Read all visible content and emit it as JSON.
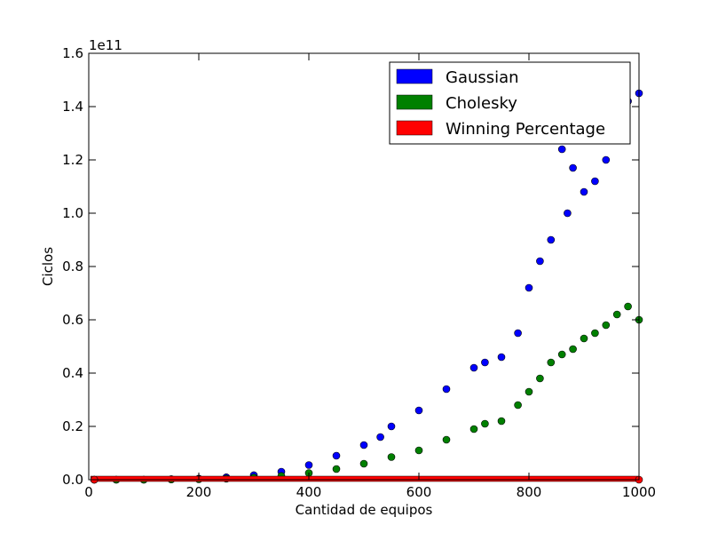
{
  "chart_data": {
    "type": "scatter",
    "xlabel": "Cantidad de equipos",
    "ylabel": "Ciclos",
    "y_multiplier_label": "1e11",
    "xlim": [
      0,
      1000
    ],
    "ylim": [
      0,
      1.6
    ],
    "x_ticks": [
      "0",
      "200",
      "400",
      "600",
      "800",
      "1000"
    ],
    "y_ticks": [
      "0.0",
      "0.2",
      "0.4",
      "0.6",
      "0.8",
      "1.0",
      "1.2",
      "1.4",
      "1.6"
    ],
    "legend_position": "upper right",
    "grid": false,
    "series": [
      {
        "name": "Gaussian",
        "color": "#0000ff",
        "x": [
          10,
          50,
          100,
          150,
          200,
          250,
          300,
          350,
          400,
          450,
          500,
          530,
          550,
          600,
          650,
          700,
          720,
          750,
          780,
          800,
          820,
          840,
          860,
          870,
          880,
          900,
          920,
          940,
          960,
          980,
          1000
        ],
        "y": [
          0.0,
          0.0,
          0.0,
          0.002,
          0.004,
          0.009,
          0.017,
          0.03,
          0.055,
          0.09,
          0.13,
          0.16,
          0.2,
          0.26,
          0.34,
          0.42,
          0.44,
          0.46,
          0.55,
          0.72,
          0.82,
          0.9,
          1.24,
          1.0,
          1.17,
          1.08,
          1.12,
          1.2,
          1.3,
          1.42,
          1.45
        ]
      },
      {
        "name": "Cholesky",
        "color": "#008000",
        "x": [
          10,
          50,
          100,
          150,
          200,
          250,
          300,
          350,
          400,
          450,
          500,
          550,
          600,
          650,
          700,
          720,
          750,
          780,
          800,
          820,
          840,
          860,
          880,
          900,
          920,
          940,
          960,
          980,
          1000
        ],
        "y": [
          0.0,
          0.0,
          0.0,
          0.001,
          0.002,
          0.004,
          0.008,
          0.014,
          0.025,
          0.04,
          0.06,
          0.085,
          0.11,
          0.15,
          0.19,
          0.21,
          0.22,
          0.28,
          0.33,
          0.38,
          0.44,
          0.47,
          0.49,
          0.53,
          0.55,
          0.58,
          0.62,
          0.65,
          0.6
        ]
      },
      {
        "name": "Winning Percentage",
        "color": "#ff0000",
        "x": [
          10,
          1000
        ],
        "y": [
          0.0,
          0.0
        ]
      }
    ]
  }
}
